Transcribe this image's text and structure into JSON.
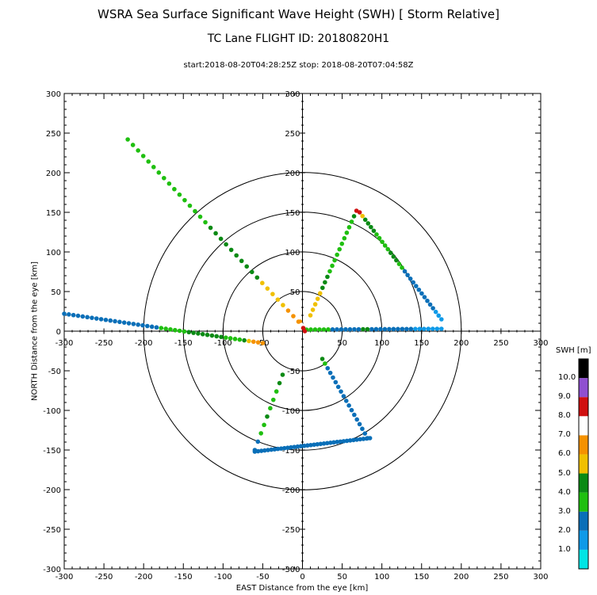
{
  "title": "WSRA Sea Surface Significant Wave Height (SWH) [ Storm Relative]",
  "subtitle": "TC Lane FLIGHT ID: 20180820H1",
  "time_range": "start:2018-08-20T04:28:25Z stop: 2018-08-20T07:04:58Z",
  "chart_data": {
    "type": "scatter",
    "title": "WSRA Sea Surface Significant Wave Height (SWH) [ Storm Relative]",
    "xlabel": "EAST Distance from the eye [km]",
    "ylabel": "NORTH Distance from the eye [km]",
    "xlim": [
      -300,
      300
    ],
    "ylim": [
      -300,
      300
    ],
    "x_ticks": [
      -300,
      -250,
      -200,
      -150,
      -100,
      -50,
      0,
      50,
      100,
      150,
      200,
      250,
      300
    ],
    "y_ticks": [
      -300,
      -250,
      -200,
      -150,
      -100,
      -50,
      0,
      50,
      100,
      150,
      200,
      250,
      300
    ],
    "range_rings_km": [
      50,
      100,
      150,
      200
    ],
    "colorbar": {
      "title": "SWH [m]",
      "labels": [
        "1.0",
        "2.0",
        "3.0",
        "4.0",
        "5.0",
        "6.0",
        "7.0",
        "8.0",
        "9.0",
        "10.0"
      ],
      "bins": [
        {
          "min": 0,
          "max": 1,
          "color": "#00e5e5"
        },
        {
          "min": 1,
          "max": 2,
          "color": "#0f9ae8"
        },
        {
          "min": 2,
          "max": 3,
          "color": "#0a6fb8"
        },
        {
          "min": 3,
          "max": 4,
          "color": "#1fbf10"
        },
        {
          "min": 4,
          "max": 5,
          "color": "#0a8a14"
        },
        {
          "min": 5,
          "max": 6,
          "color": "#f0c000"
        },
        {
          "min": 6,
          "max": 7,
          "color": "#f59200"
        },
        {
          "min": 7,
          "max": 8,
          "color": "#ffffff"
        },
        {
          "min": 8,
          "max": 9,
          "color": "#d01010"
        },
        {
          "min": 9,
          "max": 10,
          "color": "#9050d0"
        },
        {
          "min": 10,
          "max": 11,
          "color": "#000000"
        }
      ]
    },
    "series": [
      {
        "start": [
          -220,
          242
        ],
        "end": [
          -5,
          12
        ],
        "n": 34,
        "swh_stops": [
          [
            0,
            3.6
          ],
          [
            0.45,
            3.9
          ],
          [
            0.62,
            4.5
          ],
          [
            0.72,
            4.2
          ],
          [
            0.82,
            5.6
          ],
          [
            0.9,
            5.7
          ],
          [
            1.0,
            6.5
          ]
        ]
      },
      {
        "start": [
          -300,
          22
        ],
        "end": [
          -50,
          -15
        ],
        "n": 44,
        "swh_stops": [
          [
            0,
            2.6
          ],
          [
            0.45,
            2.5
          ],
          [
            0.52,
            3.5
          ],
          [
            0.7,
            4.5
          ],
          [
            0.9,
            3.6
          ],
          [
            0.94,
            6.4
          ],
          [
            1.0,
            6.2
          ]
        ]
      },
      {
        "start": [
          -25,
          -55
        ],
        "end": [
          -60,
          -150
        ],
        "n": 10,
        "swh_stops": [
          [
            0,
            4.5
          ],
          [
            0.3,
            3.5
          ],
          [
            0.6,
            4.2
          ],
          [
            0.75,
            3.5
          ],
          [
            0.85,
            2.5
          ],
          [
            1.0,
            2.5
          ]
        ]
      },
      {
        "start": [
          -60,
          -152
        ],
        "end": [
          85,
          -135
        ],
        "n": 36,
        "swh_stops": [
          [
            0,
            2.5
          ],
          [
            1.0,
            2.5
          ]
        ]
      },
      {
        "start": [
          82,
          -135
        ],
        "end": [
          25,
          -35
        ],
        "n": 18,
        "swh_stops": [
          [
            0,
            2.5
          ],
          [
            0.9,
            2.5
          ],
          [
            1.0,
            4.6
          ]
        ]
      },
      {
        "start": [
          10,
          20
        ],
        "end": [
          68,
          152
        ],
        "n": 20,
        "swh_stops": [
          [
            0,
            5.6
          ],
          [
            0.18,
            5.8
          ],
          [
            0.25,
            4.5
          ],
          [
            0.5,
            3.5
          ],
          [
            0.88,
            3.6
          ],
          [
            0.95,
            4.5
          ],
          [
            1.0,
            8.5
          ]
        ]
      },
      {
        "start": [
          72,
          150
        ],
        "end": [
          175,
          15
        ],
        "n": 30,
        "swh_stops": [
          [
            0,
            8.5
          ],
          [
            0.05,
            4.5
          ],
          [
            0.3,
            3.6
          ],
          [
            0.45,
            4.4
          ],
          [
            0.55,
            2.6
          ],
          [
            0.82,
            2.4
          ],
          [
            1.0,
            1.6
          ]
        ]
      },
      {
        "start": [
          5,
          2
        ],
        "end": [
          175,
          3
        ],
        "n": 32,
        "swh_stops": [
          [
            0,
            3.5
          ],
          [
            0.12,
            3.6
          ],
          [
            0.22,
            2.6
          ],
          [
            0.4,
            2.5
          ],
          [
            0.43,
            5.8
          ],
          [
            0.48,
            2.5
          ],
          [
            0.62,
            2.6
          ],
          [
            0.72,
            2.6
          ],
          [
            0.85,
            1.6
          ],
          [
            1.0,
            1.5
          ]
        ]
      },
      {
        "start": [
          -3,
          12
        ],
        "end": [
          3,
          0
        ],
        "n": 4,
        "swh_stops": [
          [
            0,
            6.5
          ],
          [
            0.5,
            8.6
          ],
          [
            1.0,
            8.6
          ]
        ]
      }
    ]
  }
}
